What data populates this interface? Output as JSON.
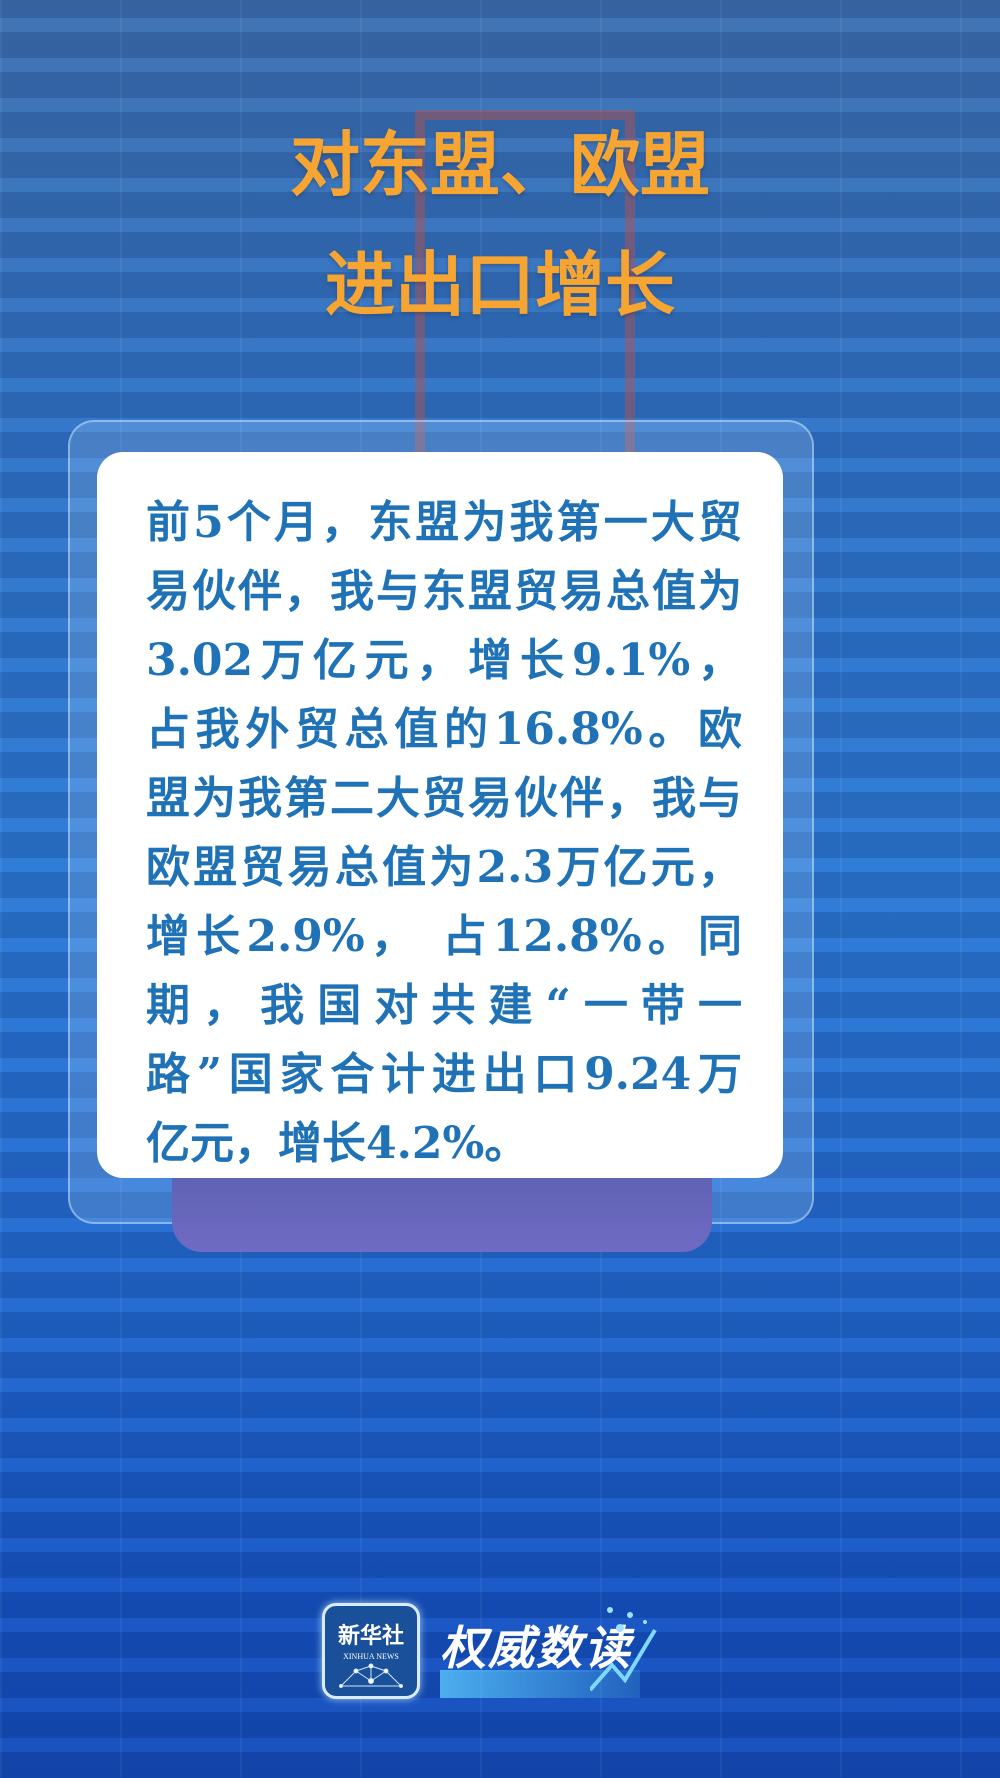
{
  "title": {
    "line1": "对东盟、欧盟",
    "line2": "进出口增长"
  },
  "body_lines": [
    "前5个月，东盟为我第一大贸",
    "易伙伴，我与东盟贸易总值为",
    "3.02万亿元，增长9.1%，",
    "占我外贸总值的16.8%。欧",
    "盟为我第二大贸易伙伴，我与",
    "欧盟贸易总值为2.3万亿元，",
    "增长2.9%， 占12.8%。同",
    "期，我国对共建“一带一",
    "路”国家合计进出口9.24万",
    "亿元，增长4.2%。"
  ],
  "footer": {
    "logo_cn": "新华社",
    "logo_en": "XINHUA NEWS",
    "brand": "权威数读"
  },
  "colors": {
    "title": "#f6a532",
    "body_text": "#1f72b6",
    "tab": "#6366b8"
  }
}
